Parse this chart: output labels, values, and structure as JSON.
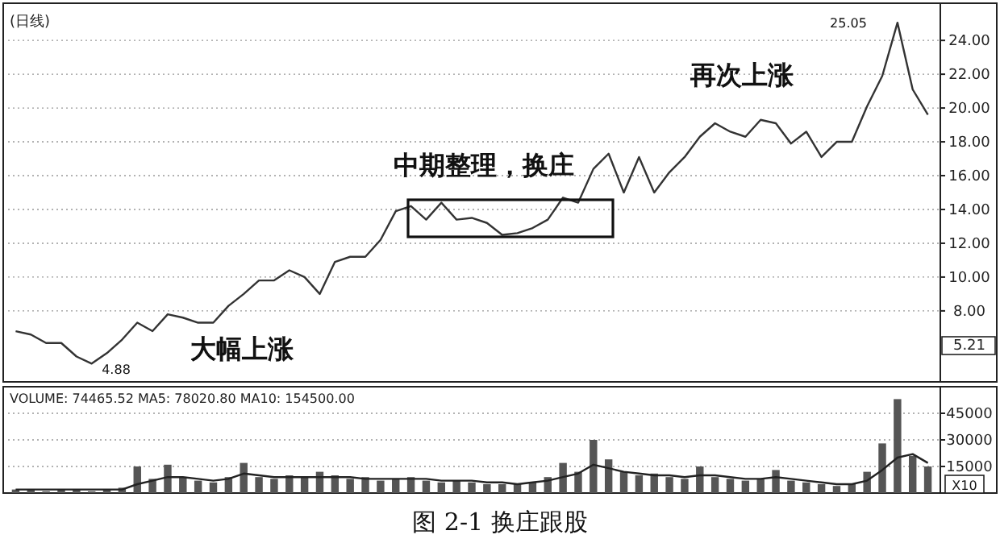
{
  "chart_data": [
    {
      "type": "line",
      "title": "(日线)",
      "categories": [
        null,
        null,
        null,
        null,
        null,
        null,
        null,
        null,
        null,
        null,
        null,
        null,
        null,
        null,
        null,
        null,
        null,
        null,
        null,
        null,
        null,
        null,
        null,
        null,
        null,
        null,
        null,
        null,
        null,
        null,
        null,
        null,
        null,
        null,
        null,
        null,
        null,
        null,
        null,
        null,
        null,
        null,
        null,
        null,
        null,
        null,
        null,
        null,
        null,
        null,
        null,
        null,
        null,
        null,
        null,
        null,
        null,
        null,
        null,
        null,
        null
      ],
      "series": [
        {
          "color": "#333333",
          "values": [
            6.8,
            6.6,
            6.1,
            6.1,
            5.3,
            4.88,
            5.5,
            6.3,
            7.3,
            6.8,
            7.8,
            7.6,
            7.3,
            7.3,
            8.3,
            9.0,
            9.8,
            9.8,
            10.4,
            10.0,
            9.0,
            10.9,
            11.2,
            11.2,
            12.2,
            13.9,
            14.2,
            13.4,
            14.4,
            13.4,
            13.5,
            13.2,
            12.5,
            12.6,
            12.9,
            13.4,
            14.7,
            14.4,
            16.4,
            17.3,
            15.0,
            17.1,
            15.0,
            16.2,
            17.1,
            18.3,
            19.1,
            18.6,
            18.3,
            19.3,
            19.1,
            17.9,
            18.6,
            17.1,
            18.0,
            18.0,
            20.1,
            21.9,
            25.05,
            21.1,
            19.6
          ]
        }
      ],
      "ylim": [
        3.8,
        26.2
      ],
      "yticks": [
        {
          "value": 8,
          "label": "8.00"
        },
        {
          "value": 10,
          "label": "10.00"
        },
        {
          "value": 12,
          "label": "12.00"
        },
        {
          "value": 14,
          "label": "14.00"
        },
        {
          "value": 16,
          "label": "16.00"
        },
        {
          "value": 18,
          "label": "18.00"
        },
        {
          "value": 20,
          "label": "20.00"
        },
        {
          "value": 22,
          "label": "22.00"
        },
        {
          "value": 24,
          "label": "24.00"
        }
      ],
      "grid": "y",
      "tick_labels": "y",
      "marker": "none",
      "annotations": [
        "大幅上涨",
        "中期整理，换庄",
        "再次上涨",
        "4.88",
        "25.05",
        "5.21"
      ]
    },
    {
      "type": "bar",
      "title": "VOLUME: 74465.52 MA5: 78020.80 MA10: 154500.00",
      "categories": [
        null,
        null,
        null,
        null,
        null,
        null,
        null,
        null,
        null,
        null,
        null,
        null,
        null,
        null,
        null,
        null,
        null,
        null,
        null,
        null,
        null,
        null,
        null,
        null,
        null,
        null,
        null,
        null,
        null,
        null,
        null,
        null,
        null,
        null,
        null,
        null,
        null,
        null,
        null,
        null,
        null,
        null,
        null,
        null,
        null,
        null,
        null,
        null,
        null,
        null,
        null,
        null,
        null,
        null,
        null,
        null,
        null,
        null,
        null,
        null,
        null
      ],
      "series": [
        {
          "color": "#555555",
          "values": [
            2000,
            2000,
            1000,
            2000,
            2000,
            1000,
            2000,
            3000,
            15000,
            8000,
            16000,
            9000,
            7000,
            6000,
            9000,
            17000,
            9000,
            8000,
            10000,
            9000,
            12000,
            10000,
            8000,
            9000,
            7000,
            8000,
            9000,
            7000,
            6000,
            7000,
            6000,
            5000,
            5000,
            5000,
            6000,
            9000,
            17000,
            12000,
            30000,
            19000,
            12000,
            10000,
            11000,
            9000,
            8000,
            15000,
            9000,
            8000,
            7000,
            8000,
            13000,
            7000,
            6000,
            5000,
            4000,
            5000,
            12000,
            28000,
            53000,
            21000,
            15000
          ]
        },
        {
          "type": "line",
          "color": "#222222",
          "values": [
            2000,
            2000,
            2000,
            2000,
            2000,
            2000,
            2000,
            2000,
            5000,
            7000,
            9000,
            9000,
            8000,
            7000,
            8000,
            11000,
            10000,
            9000,
            9000,
            9000,
            9000,
            9000,
            9000,
            8000,
            8000,
            8000,
            8000,
            8000,
            7000,
            7000,
            7000,
            6000,
            6000,
            5000,
            6000,
            7000,
            9000,
            11000,
            16000,
            14000,
            12000,
            11000,
            10000,
            10000,
            9000,
            10000,
            10000,
            9000,
            8000,
            8000,
            9000,
            8000,
            7000,
            6000,
            5000,
            5000,
            7000,
            13000,
            20000,
            22000,
            17000
          ]
        }
      ],
      "ylim": [
        0,
        60000
      ],
      "yticks": [
        15000,
        30000,
        45000
      ],
      "grid": "y",
      "tick_labels": "y",
      "marker": "none",
      "annotations": [
        "X10",
        "图 2-1 换庄跟股"
      ]
    }
  ]
}
